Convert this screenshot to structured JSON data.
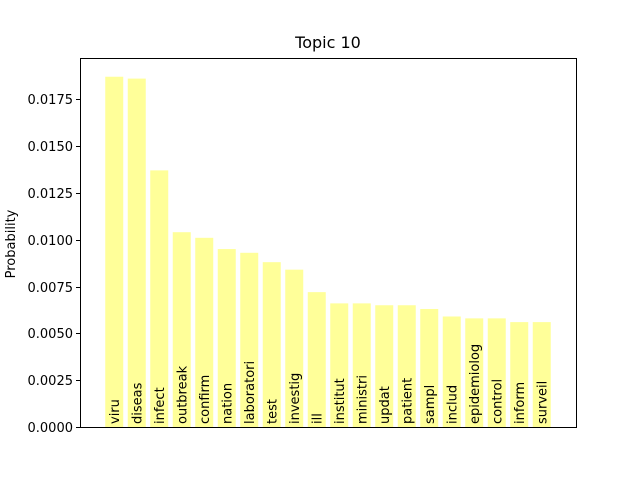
{
  "chart_data": {
    "type": "bar",
    "title": "Topic 10",
    "xlabel": "",
    "ylabel": "Probability",
    "ylim": [
      0,
      0.0197
    ],
    "yticks": [
      "0.0000",
      "0.0025",
      "0.0050",
      "0.0075",
      "0.0100",
      "0.0125",
      "0.0150",
      "0.0175"
    ],
    "grid": false,
    "bar_color": "#ffff99",
    "categories": [
      "viru",
      "diseas",
      "infect",
      "outbreak",
      "confirm",
      "nation",
      "laboratori",
      "test",
      "investig",
      "ill",
      "institut",
      "ministri",
      "updat",
      "patient",
      "sampl",
      "includ",
      "epidemiolog",
      "control",
      "inform",
      "surveil"
    ],
    "values": [
      0.0187,
      0.0186,
      0.0137,
      0.0104,
      0.0101,
      0.0095,
      0.0093,
      0.0088,
      0.0084,
      0.0072,
      0.0066,
      0.0066,
      0.0065,
      0.0065,
      0.0063,
      0.0059,
      0.0058,
      0.0058,
      0.0056,
      0.0056
    ]
  }
}
